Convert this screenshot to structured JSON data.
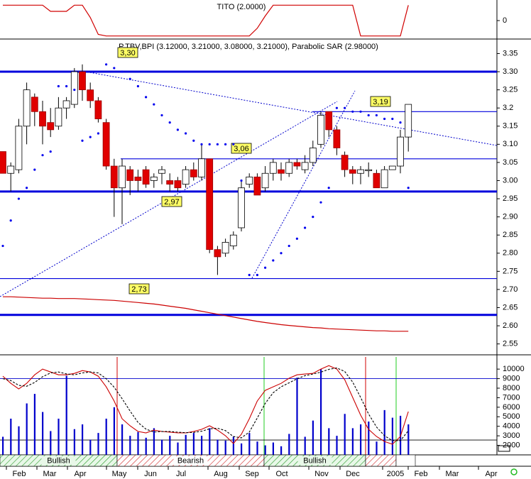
{
  "chart_data": [
    {
      "type": "line",
      "title": "TITO (2.0000)",
      "series": [
        {
          "color": "#d00000",
          "values": [
            1,
            1,
            1,
            1,
            1,
            1,
            0.6,
            0.6,
            0.6,
            1,
            1,
            0.2,
            -0.9,
            -1,
            -1,
            -1,
            -1,
            -1,
            -1,
            -1,
            -1,
            -1,
            -1,
            -1,
            -1,
            -1,
            -1,
            -1,
            -1,
            -1,
            -1,
            -1,
            -0.5,
            0.3,
            1,
            1,
            1,
            1,
            1,
            1,
            1,
            1,
            1,
            1,
            1,
            -1,
            -1,
            -1,
            -1,
            -1,
            -1,
            1
          ]
        }
      ],
      "ylim": [
        -1.2,
        1.2
      ],
      "yticks": [
        0
      ]
    },
    {
      "type": "candlestick",
      "title": "P.TBV,BPI (3.12000, 3.21000, 3.08000, 3.21000), Parabolic SAR (2.98000)",
      "open": [
        3.08,
        3.02,
        3.03,
        3.15,
        3.23,
        3.19,
        3.16,
        3.15,
        3.2,
        3.21,
        3.3,
        3.25,
        3.22,
        3.16,
        3.04,
        2.98,
        3.03,
        3.01,
        3.03,
        3.0,
        3.02,
        3.0,
        3.0,
        2.99,
        3.03,
        3.01,
        3.06,
        2.81,
        2.8,
        2.82,
        2.87,
        2.99,
        3.01,
        2.98,
        3.02,
        3.03,
        3.02,
        3.05,
        3.03,
        3.05,
        3.1,
        3.19,
        3.14,
        3.07,
        3.03,
        3.02,
        3.03,
        3.02,
        2.98,
        3.03,
        3.04,
        3.12
      ],
      "high": [
        3.08,
        3.05,
        3.17,
        3.27,
        3.24,
        3.22,
        3.2,
        3.23,
        3.23,
        3.31,
        3.32,
        3.27,
        3.23,
        3.17,
        3.06,
        3.06,
        3.04,
        3.03,
        3.04,
        3.02,
        3.04,
        3.02,
        3.01,
        3.04,
        3.05,
        3.1,
        3.06,
        2.82,
        2.84,
        2.86,
        3.0,
        3.02,
        3.02,
        3.04,
        3.06,
        3.05,
        3.06,
        3.06,
        3.07,
        3.11,
        3.19,
        3.19,
        3.15,
        3.08,
        3.04,
        3.04,
        3.05,
        3.03,
        3.04,
        3.04,
        3.14,
        3.21
      ],
      "low": [
        3.02,
        2.97,
        3.02,
        3.1,
        3.15,
        3.1,
        3.12,
        3.14,
        3.17,
        3.2,
        3.22,
        3.2,
        3.16,
        3.03,
        2.9,
        2.88,
        2.96,
        2.97,
        2.98,
        2.98,
        2.99,
        2.97,
        2.97,
        2.98,
        3.0,
        3.0,
        2.8,
        2.74,
        2.79,
        2.81,
        2.86,
        2.98,
        2.96,
        2.97,
        3.0,
        3.0,
        3.01,
        3.03,
        3.02,
        3.04,
        3.09,
        3.12,
        3.07,
        3.01,
        2.99,
        2.99,
        3.01,
        2.98,
        2.98,
        3.03,
        3.02,
        3.08
      ],
      "close": [
        3.02,
        3.04,
        3.15,
        3.25,
        3.19,
        3.15,
        3.14,
        3.2,
        3.22,
        3.3,
        3.25,
        3.22,
        3.17,
        3.04,
        2.98,
        3.04,
        3.0,
        3.0,
        2.99,
        3.01,
        3.03,
        2.99,
        2.98,
        3.03,
        3.01,
        3.06,
        2.81,
        2.79,
        2.83,
        2.85,
        2.98,
        3.01,
        2.96,
        3.02,
        3.05,
        3.02,
        3.05,
        3.04,
        3.05,
        3.09,
        3.18,
        3.14,
        3.09,
        3.03,
        3.02,
        3.03,
        3.03,
        2.98,
        3.03,
        3.04,
        3.12,
        3.21
      ],
      "up_color": "#ffffff",
      "down_color": "#e00000",
      "sar": {
        "color": "#0000ee",
        "values": [
          2.82,
          2.89,
          2.95,
          2.98,
          3.03,
          3.07,
          3.08,
          3.26,
          3.26,
          3.25,
          3.11,
          3.12,
          3.13,
          3.32,
          3.31,
          3.3,
          3.28,
          3.26,
          3.23,
          3.21,
          3.18,
          3.16,
          3.14,
          3.13,
          3.11,
          3.1,
          3.1,
          3.1,
          3.1,
          3.1,
          3.0,
          2.74,
          2.74,
          2.76,
          2.78,
          2.8,
          2.82,
          2.84,
          2.87,
          2.9,
          2.94,
          2.98,
          3.2,
          3.2,
          3.19,
          3.19,
          3.18,
          3.18,
          3.17,
          3.17,
          3.16,
          2.98
        ]
      },
      "moving_average": {
        "color": "#cc0000",
        "values": [
          2.68,
          2.68,
          2.679,
          2.678,
          2.677,
          2.676,
          2.676,
          2.675,
          2.675,
          2.675,
          2.674,
          2.673,
          2.672,
          2.671,
          2.67,
          2.668,
          2.666,
          2.664,
          2.662,
          2.66,
          2.657,
          2.654,
          2.651,
          2.648,
          2.644,
          2.64,
          2.636,
          2.632,
          2.628,
          2.624,
          2.62,
          2.616,
          2.612,
          2.609,
          2.606,
          2.603,
          2.601,
          2.599,
          2.597,
          2.595,
          2.594,
          2.592,
          2.591,
          2.59,
          2.589,
          2.588,
          2.587,
          2.586,
          2.586,
          2.585,
          2.585,
          2.585
        ]
      },
      "levels": [
        {
          "value": 3.3,
          "label": "3,30",
          "thick": true
        },
        {
          "value": 3.19,
          "label": "3,19",
          "thick": false
        },
        {
          "value": 3.06,
          "label": "3,06",
          "thick": false
        },
        {
          "value": 2.97,
          "label": "2,97",
          "thick": true
        },
        {
          "value": 2.73,
          "label": "2,73",
          "thick": false
        },
        {
          "value": 2.63,
          "thick": true
        }
      ],
      "ylim": [
        2.52,
        3.39
      ],
      "yticks": [
        3.35,
        {
          "value": 3.3,
          "label": "3.30"
        },
        3.25,
        3.2,
        3.15,
        {
          "value": 3.1,
          "label": "3.10"
        },
        3.05,
        {
          "value": 3,
          "label": "3.00"
        },
        2.95,
        {
          "value": 2.9,
          "label": "2.90"
        },
        2.85,
        {
          "value": 2.8,
          "label": "2.80"
        },
        2.75,
        {
          "value": 2.7,
          "label": "2.70"
        },
        2.65,
        {
          "value": 2.6,
          "label": "2.60"
        },
        2.55
      ]
    },
    {
      "type": "bar",
      "series": [
        {
          "kind": "bar",
          "color": "#0000cc",
          "values": [
            2900,
            4800,
            4000,
            6400,
            7400,
            5500,
            3500,
            4800,
            9300,
            3700,
            4200,
            2600,
            3300,
            4800,
            6000,
            4200,
            3000,
            3400,
            2800,
            3800,
            2600,
            3000,
            2300,
            3100,
            3300,
            3000,
            3800,
            2600,
            2500,
            2900,
            2200,
            3300,
            2400,
            2000,
            2300,
            1900,
            3200,
            9100,
            2900,
            4600,
            10000,
            3800,
            3000,
            5300,
            3800,
            4200,
            4500,
            2400,
            5700,
            4900,
            5100,
            4200
          ]
        },
        {
          "kind": "line",
          "color": "#cc0000",
          "dash": false,
          "values": [
            9260,
            8510,
            7920,
            8510,
            9400,
            10000,
            9700,
            9400,
            9400,
            9550,
            9850,
            9700,
            9260,
            8140,
            6650,
            4790,
            4050,
            3460,
            3310,
            3600,
            3460,
            3380,
            3310,
            3310,
            3460,
            3680,
            4050,
            3600,
            3010,
            2190,
            3160,
            4790,
            6650,
            7770,
            8140,
            8510,
            9040,
            9400,
            9480,
            9550,
            10000,
            10370,
            10000,
            8890,
            7030,
            5170,
            3680,
            2930,
            2410,
            2120,
            2930,
            5540
          ]
        },
        {
          "kind": "line",
          "color": "#000000",
          "dash": true,
          "values": [
            9000,
            8800,
            8300,
            8200,
            8600,
            9200,
            9600,
            9700,
            9500,
            9400,
            9600,
            9700,
            9600,
            9000,
            8100,
            6900,
            5600,
            4400,
            3700,
            3400,
            3450,
            3450,
            3380,
            3330,
            3360,
            3480,
            3730,
            3800,
            3550,
            2930,
            2790,
            3390,
            4870,
            6400,
            7520,
            8140,
            8560,
            8980,
            9310,
            9480,
            9680,
            9970,
            10120,
            9750,
            8640,
            7030,
            5290,
            3930,
            3010,
            2490,
            2490,
            3530
          ]
        }
      ],
      "hlines": [
        {
          "value": 9000,
          "color": "#0000cc"
        },
        {
          "value": 2560,
          "color": "#000000"
        }
      ],
      "ylim": [
        1000,
        11500
      ],
      "yticks": [
        10000,
        9000,
        8000,
        7000,
        6000,
        5000,
        4000,
        3000,
        2000
      ],
      "regime_labels": [
        "Bullish",
        "Bearish",
        "Bullish"
      ],
      "month_labels": [
        "Feb",
        "Mar",
        "Apr",
        "May",
        "Jun",
        "Jul",
        "Aug",
        "Sep",
        "Oct",
        "Nov",
        "Dec",
        "2005",
        "Feb",
        "Mar",
        "Apr"
      ]
    }
  ]
}
